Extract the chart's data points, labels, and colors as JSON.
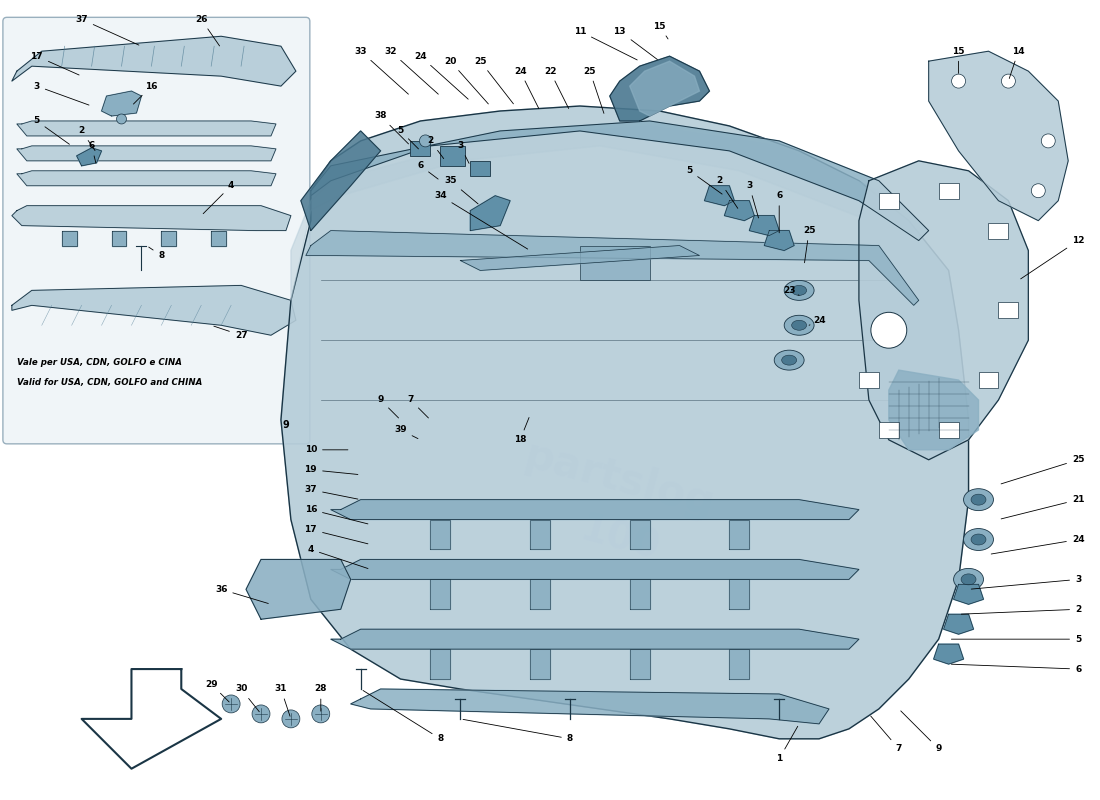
{
  "background_color": "#ffffff",
  "part_color_light": "#b5ccd8",
  "part_color_mid": "#8aafc2",
  "part_color_dark": "#6090a8",
  "part_color_darker": "#4a7890",
  "outline_color": "#1a3545",
  "text_color": "#000000",
  "watermark_color": "#d0dde5",
  "inset_bg": "#f0f5f8",
  "inset_edge": "#9ab0be",
  "figsize": [
    11.0,
    8.0
  ],
  "dpi": 100,
  "legend_it": "Vale per USA, CDN, GOLFO e CINA",
  "legend_en": "Valid for USA, CDN, GOLFO and CHINA"
}
